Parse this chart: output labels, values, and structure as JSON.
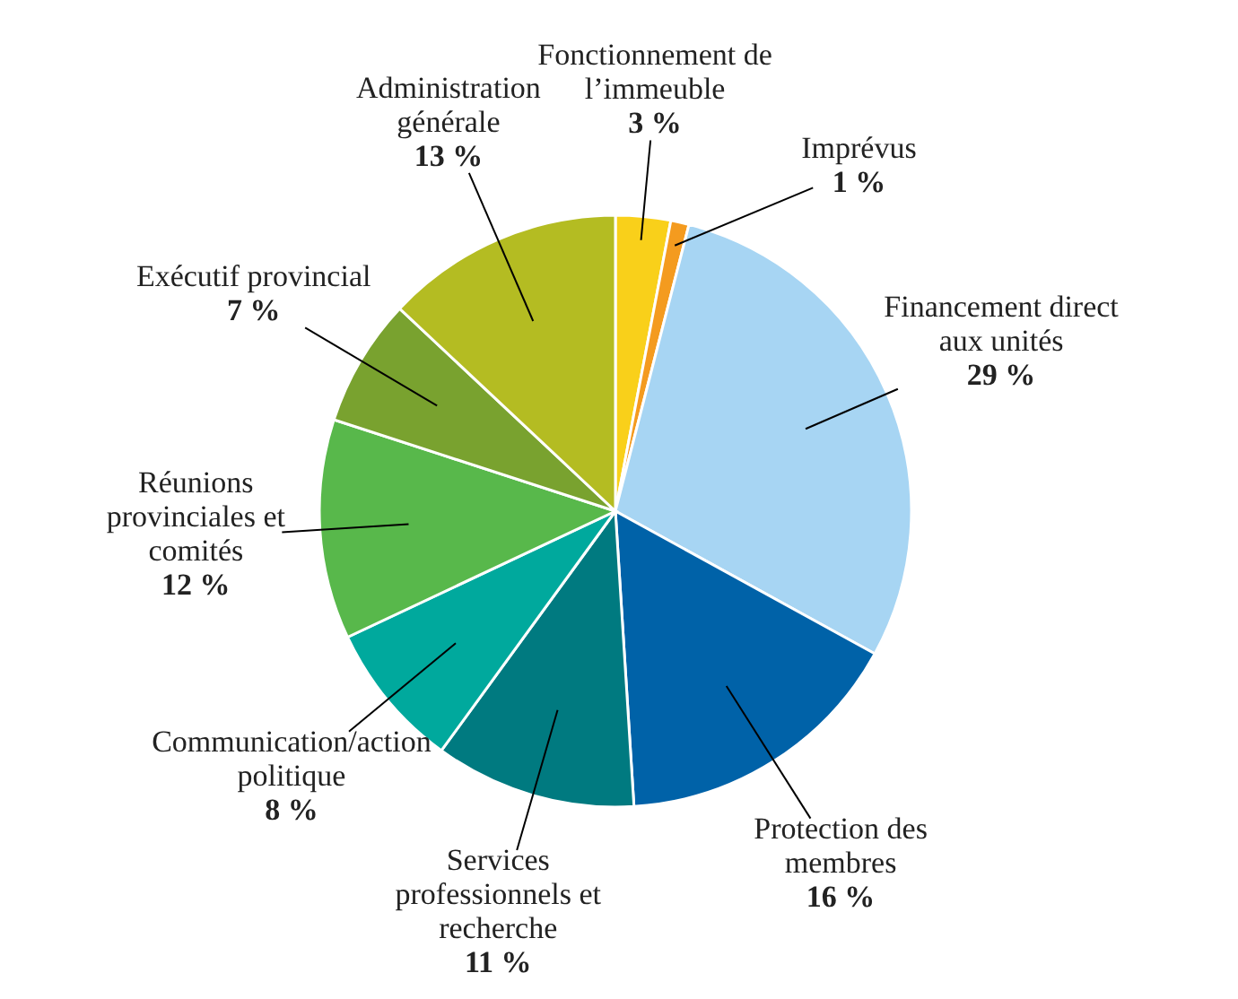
{
  "chart_data": {
    "type": "pie",
    "categories": [
      "Fonctionnement de l’immeuble",
      "Imprévus",
      "Financement direct aux unités",
      "Protection des membres",
      "Services professionnels et recherche",
      "Communication/action politique",
      "Réunions provinciales et comités",
      "Exécutif provincial",
      "Administration générale"
    ],
    "values": [
      3,
      1,
      29,
      16,
      11,
      8,
      12,
      7,
      13
    ],
    "value_labels": [
      "3 %",
      "1 %",
      "29 %",
      "16 %",
      "11 %",
      "8 %",
      "12 %",
      "7 %",
      "13 %"
    ],
    "colors": [
      "#f9d01a",
      "#f49b1f",
      "#a7d5f3",
      "#0062a8",
      "#007a80",
      "#00a99d",
      "#58b84b",
      "#79a22f",
      "#b4bc22"
    ]
  }
}
